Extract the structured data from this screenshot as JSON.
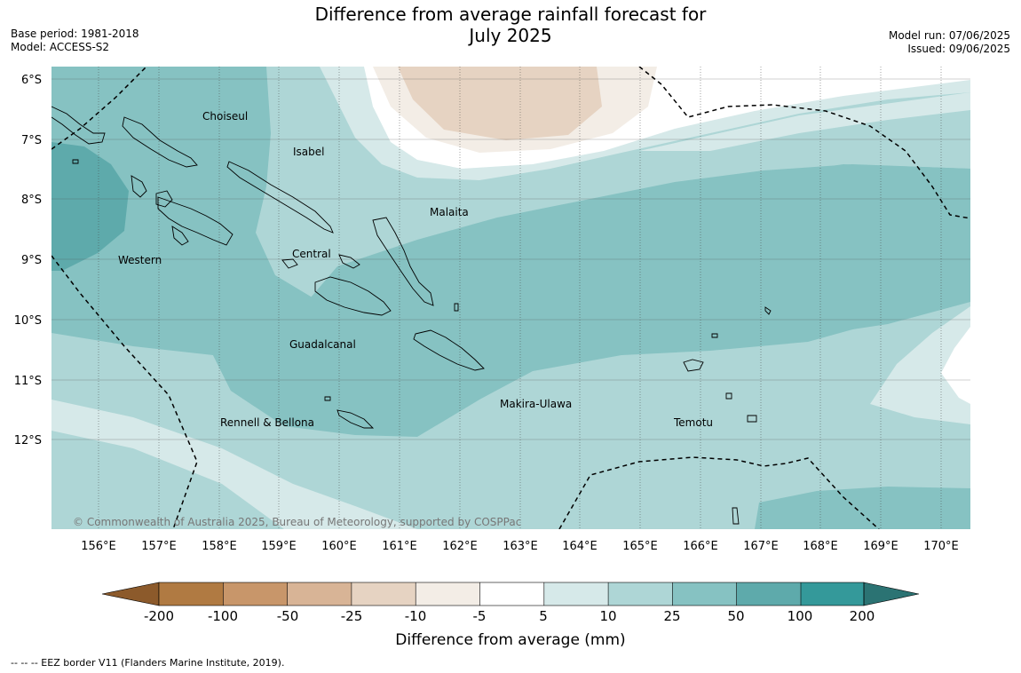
{
  "header": {
    "title_line1": "Difference from average rainfall forecast for",
    "title_line2": "July 2025",
    "base_period": "Base period: 1981-2018",
    "model": "Model: ACCESS-S2",
    "model_run": "Model run: 07/06/2025",
    "issued": "Issued: 09/06/2025"
  },
  "map": {
    "lat_labels": [
      "6°S",
      "7°S",
      "8°S",
      "9°S",
      "10°S",
      "11°S",
      "12°S"
    ],
    "lon_labels": [
      "156°E",
      "157°E",
      "158°E",
      "159°E",
      "160°E",
      "161°E",
      "162°E",
      "163°E",
      "164°E",
      "165°E",
      "166°E",
      "167°E",
      "168°E",
      "169°E",
      "170°E"
    ],
    "regions": [
      "Choiseul",
      "Isabel",
      "Malaita",
      "Western",
      "Central",
      "Guadalcanal",
      "Rennell & Bellona",
      "Makira-Ulawa",
      "Temotu"
    ],
    "copyright": "© Commonwealth of Australia 2025, Bureau of Meteorology, supported by COSPPac"
  },
  "colorbar": {
    "tick_labels": [
      "-200",
      "-100",
      "-50",
      "-25",
      "-10",
      "-5",
      "5",
      "10",
      "25",
      "50",
      "100",
      "200"
    ],
    "colors": [
      "#8c5a2b",
      "#b07a42",
      "#c8966a",
      "#d8b496",
      "#e6d3c2",
      "#f3ede6",
      "#ffffff",
      "#d6e9e9",
      "#aed6d6",
      "#86c2c2",
      "#5eaaab",
      "#34999a",
      "#2b7373"
    ],
    "title": "Difference from average (mm)"
  },
  "footer": {
    "eez_note": "--  --  -- EEZ border V11 (Flanders Marine Institute, 2019)."
  }
}
